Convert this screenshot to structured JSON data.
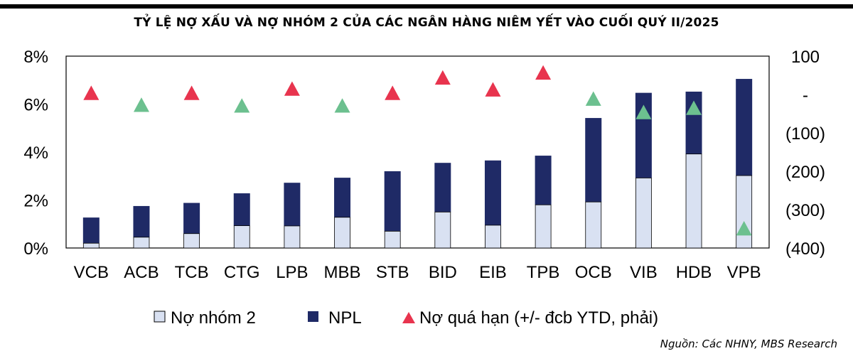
{
  "chart_data": {
    "type": "bar",
    "title": "TỶ LỆ NỢ XẤU VÀ NỢ NHÓM 2 CỦA CÁC NGÂN HÀNG NIÊM YẾT VÀO CUỐI QUÝ II/2025",
    "categories": [
      "VCB",
      "ACB",
      "TCB",
      "CTG",
      "LPB",
      "MBB",
      "STB",
      "BID",
      "EIB",
      "TPB",
      "OCB",
      "VIB",
      "HDB",
      "VPB"
    ],
    "series": [
      {
        "name": "Nợ nhóm 2",
        "kind": "stacked-bar",
        "axis": "left",
        "color": "#d9e1f2",
        "values": [
          0.2,
          0.45,
          0.6,
          0.93,
          0.92,
          1.28,
          0.7,
          1.5,
          0.95,
          1.8,
          1.92,
          2.92,
          3.92,
          3.02
        ]
      },
      {
        "name": "NPL",
        "kind": "stacked-bar",
        "axis": "left",
        "color": "#1f2a66",
        "values": [
          1.07,
          1.3,
          1.28,
          1.35,
          1.8,
          1.65,
          2.5,
          2.05,
          2.7,
          2.05,
          3.5,
          3.55,
          2.6,
          4.03
        ]
      },
      {
        "name": "Nợ quá hạn (+/- đcb YTD, phải)",
        "kind": "marker",
        "axis": "right",
        "values": [
          3,
          -28,
          3,
          -30,
          14,
          -30,
          3,
          43,
          12,
          56,
          -12,
          -47,
          -36,
          -350
        ],
        "colors": [
          "#e8344e",
          "#6cc08f",
          "#e8344e",
          "#6cc08f",
          "#e8344e",
          "#6cc08f",
          "#e8344e",
          "#e8344e",
          "#e8344e",
          "#e8344e",
          "#6cc08f",
          "#6cc08f",
          "#6cc08f",
          "#6cc08f"
        ]
      }
    ],
    "y_left": {
      "min": 0,
      "max": 8,
      "ticks": [
        "0%",
        "2%",
        "4%",
        "6%",
        "8%"
      ]
    },
    "y_right": {
      "min": -400,
      "max": 100,
      "ticks": [
        "(400)",
        "(300)",
        "(200)",
        "(100)",
        "-",
        "100"
      ]
    },
    "grid": false,
    "legend": "bottom"
  },
  "source": "Nguồn: Các NHNY, MBS Research"
}
